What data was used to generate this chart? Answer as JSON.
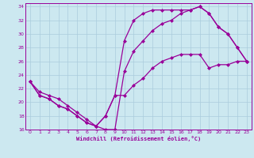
{
  "xlabel": "Windchill (Refroidissement éolien,°C)",
  "bg_color": "#cce8f0",
  "grid_color": "#aaccdd",
  "line_color": "#990099",
  "xlim": [
    -0.5,
    23.5
  ],
  "ylim": [
    16,
    34.5
  ],
  "yticks": [
    16,
    18,
    20,
    22,
    24,
    26,
    28,
    30,
    32,
    34
  ],
  "xticks": [
    0,
    1,
    2,
    3,
    4,
    5,
    6,
    7,
    8,
    9,
    10,
    11,
    12,
    13,
    14,
    15,
    16,
    17,
    18,
    19,
    20,
    21,
    22,
    23
  ],
  "curve1_x": [
    0,
    1,
    2,
    3,
    4,
    5,
    6,
    7,
    8,
    9,
    10,
    11,
    12,
    13,
    14,
    15,
    16,
    17,
    18,
    19,
    20,
    21,
    22,
    23
  ],
  "curve1_y": [
    23,
    21,
    20.5,
    19.5,
    19,
    18,
    17,
    16.5,
    18,
    21,
    21,
    22.5,
    23.5,
    25,
    26,
    26.5,
    27,
    27,
    27,
    25,
    25.5,
    25.5,
    26,
    26
  ],
  "curve2_x": [
    0,
    1,
    2,
    3,
    4,
    5,
    6,
    7,
    8,
    9,
    10,
    11,
    12,
    13,
    14,
    15,
    16,
    17,
    18,
    19,
    20,
    21,
    22,
    23
  ],
  "curve2_y": [
    23,
    21,
    20.5,
    19.5,
    19,
    18,
    17,
    16.5,
    18,
    21,
    29,
    32,
    33,
    33.5,
    33.5,
    33.5,
    33.5,
    33.5,
    34,
    33,
    31,
    30,
    28,
    26
  ],
  "curve3_x": [
    0,
    1,
    2,
    3,
    4,
    5,
    6,
    7,
    8,
    9,
    10,
    11,
    12,
    13,
    14,
    15,
    16,
    17,
    18,
    19,
    20,
    21,
    22,
    23
  ],
  "curve3_y": [
    23,
    21.5,
    21,
    20.5,
    19.5,
    18.5,
    17.5,
    16.5,
    16,
    16,
    24.5,
    27.5,
    29,
    30.5,
    31.5,
    32,
    33,
    33.5,
    34,
    33,
    31,
    30,
    28,
    26
  ],
  "markersize": 2.5,
  "linewidth": 0.9
}
